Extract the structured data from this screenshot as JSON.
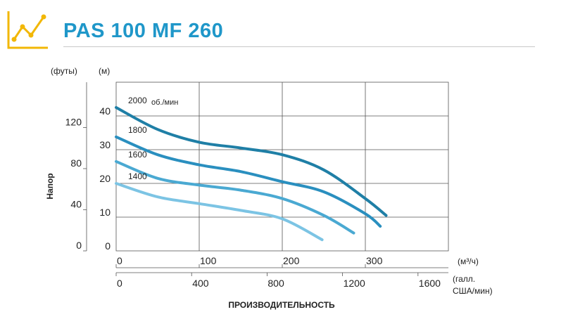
{
  "header": {
    "title": "PAS 100 MF 260",
    "logo_icon": "line-chart-icon",
    "accent": "#1f97c9",
    "logo_color": "#f2b705"
  },
  "chart_data": {
    "type": "line",
    "xlabel": "ПРОИЗВОДИТЕЛЬНОСТЬ",
    "ylabel": "Напор",
    "x_unit_primary": "(м³/ч)",
    "x_unit_secondary": [
      "(галл.",
      "США/мин)"
    ],
    "y_unit_primary": "(м)",
    "y_unit_secondary": "(футы)",
    "xlim": [
      0,
      400
    ],
    "ylim": [
      0,
      50
    ],
    "x_ticks": [
      0,
      100,
      200,
      300
    ],
    "x_ticks_secondary": [
      0,
      400,
      800,
      1200,
      1600
    ],
    "y_ticks": [
      0,
      10,
      20,
      30,
      40
    ],
    "y_ticks_secondary": [
      0,
      40,
      80,
      120
    ],
    "series": [
      {
        "name": "2000",
        "label": "2000",
        "unit": "об./мин",
        "color": "#1f7fa6",
        "x": [
          0,
          50,
          100,
          150,
          200,
          250,
          300,
          325
        ],
        "y": [
          42.5,
          36,
          32.2,
          30.5,
          28.5,
          24,
          15.5,
          10.5
        ]
      },
      {
        "name": "1800",
        "label": "1800",
        "unit": "",
        "color": "#2a8fbf",
        "x": [
          0,
          50,
          100,
          150,
          200,
          250,
          300,
          318
        ],
        "y": [
          33.8,
          28.5,
          25.5,
          23.5,
          20.5,
          17.5,
          11,
          7.3
        ]
      },
      {
        "name": "1600",
        "label": "1600",
        "unit": "",
        "color": "#4aa9d2",
        "x": [
          0,
          50,
          100,
          150,
          200,
          250,
          286
        ],
        "y": [
          26.5,
          21.5,
          19.5,
          18,
          15.5,
          10.5,
          5.3
        ]
      },
      {
        "name": "1400",
        "label": "1400",
        "unit": "",
        "color": "#7cc4e4",
        "x": [
          0,
          50,
          100,
          150,
          200,
          248
        ],
        "y": [
          20,
          16,
          14,
          12,
          9.5,
          3.3
        ]
      }
    ]
  }
}
